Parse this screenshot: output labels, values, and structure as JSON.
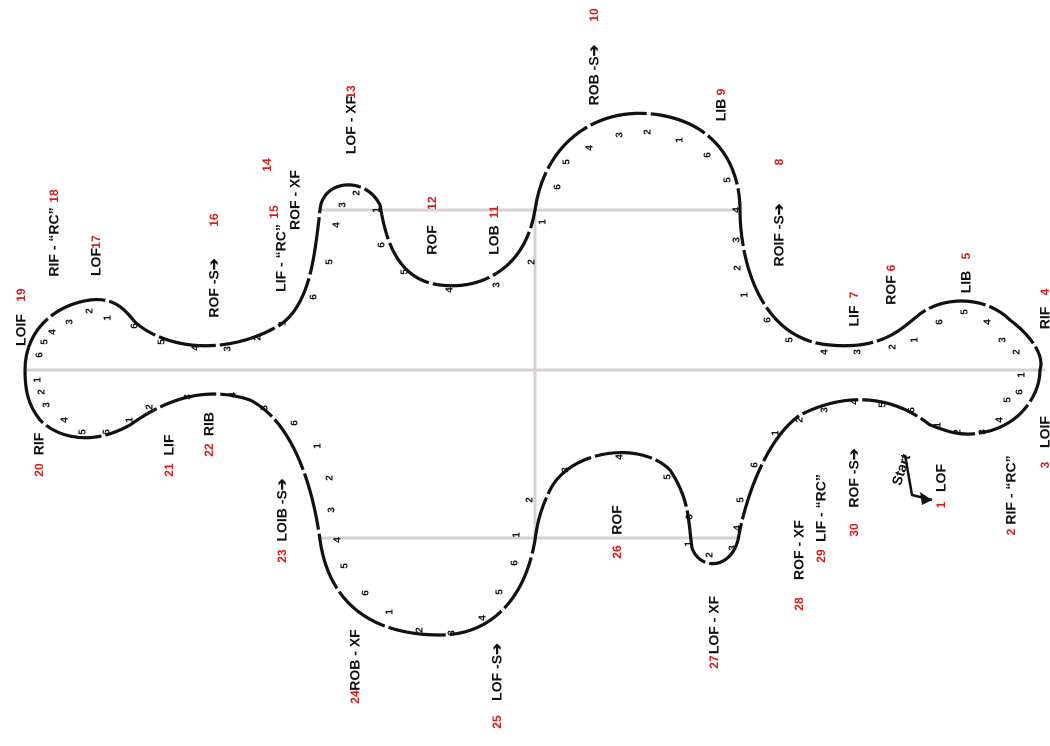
{
  "steps": [
    {
      "number": "1",
      "label": "LOF"
    },
    {
      "number": "2",
      "label": "RIF - “RC”"
    },
    {
      "number": "3",
      "label": "LOIF"
    },
    {
      "number": "4",
      "label": "RIF"
    },
    {
      "number": "5",
      "label": "LIB"
    },
    {
      "number": "6",
      "label": "ROF"
    },
    {
      "number": "7",
      "label": "LIF"
    },
    {
      "number": "8",
      "label": "ROIF -S➔"
    },
    {
      "number": "9",
      "label": "LIB"
    },
    {
      "number": "10",
      "label": "ROB -S➔"
    },
    {
      "number": "11",
      "label": "LOB"
    },
    {
      "number": "12",
      "label": "ROF"
    },
    {
      "number": "13",
      "label": "LOF - XF"
    },
    {
      "number": "14",
      "label": "ROF - XF"
    },
    {
      "number": "15",
      "label": "LIF - “RC”"
    },
    {
      "number": "16",
      "label": "ROF -S➔"
    },
    {
      "number": "17",
      "label": "LOF"
    },
    {
      "number": "18",
      "label": "RIF - “RC”"
    },
    {
      "number": "19",
      "label": "LOIF"
    },
    {
      "number": "20",
      "label": "RIF"
    },
    {
      "number": "21",
      "label": "LIF"
    },
    {
      "number": "22",
      "label": "RIB"
    },
    {
      "number": "23",
      "label": "LOIB -S➔"
    },
    {
      "number": "24",
      "label": "ROB - XF"
    },
    {
      "number": "25",
      "label": "LOF -S➔"
    },
    {
      "number": "26",
      "label": "ROF"
    },
    {
      "number": "27",
      "label": "LOF - XF"
    },
    {
      "number": "28",
      "label": "ROF - XF"
    },
    {
      "number": "29",
      "label": "LIF - “RC”"
    },
    {
      "number": "30",
      "label": "ROF -S➔"
    }
  ],
  "start": "Start",
  "counts": [
    "6",
    "5",
    "4",
    "3",
    "2",
    "1",
    "6",
    "5",
    "4",
    "3",
    "2",
    "1",
    "6",
    "5",
    "4",
    "3",
    "2",
    "1",
    "6",
    "5",
    "4",
    "3",
    "2",
    "1",
    "6",
    "5",
    "4",
    "3",
    "2",
    "1",
    "6",
    "5",
    "4",
    "3",
    "2",
    "1",
    "6",
    "5",
    "4",
    "3",
    "2",
    "1",
    "6",
    "5",
    "4",
    "3",
    "2",
    "1",
    "1",
    "2",
    "3",
    "4",
    "5",
    "6",
    "1",
    "2",
    "3",
    "4",
    "5",
    "6",
    "1",
    "2",
    "3",
    "4",
    "5",
    "6",
    "1",
    "2",
    "3",
    "4",
    "5",
    "6",
    "1",
    "2",
    "3",
    "4",
    "5",
    "6",
    "1",
    "2",
    "3",
    "4",
    "5",
    "6",
    "1",
    "2",
    "3",
    "4",
    "5",
    "6",
    "1",
    "2",
    "3",
    "4",
    "5",
    "6"
  ]
}
